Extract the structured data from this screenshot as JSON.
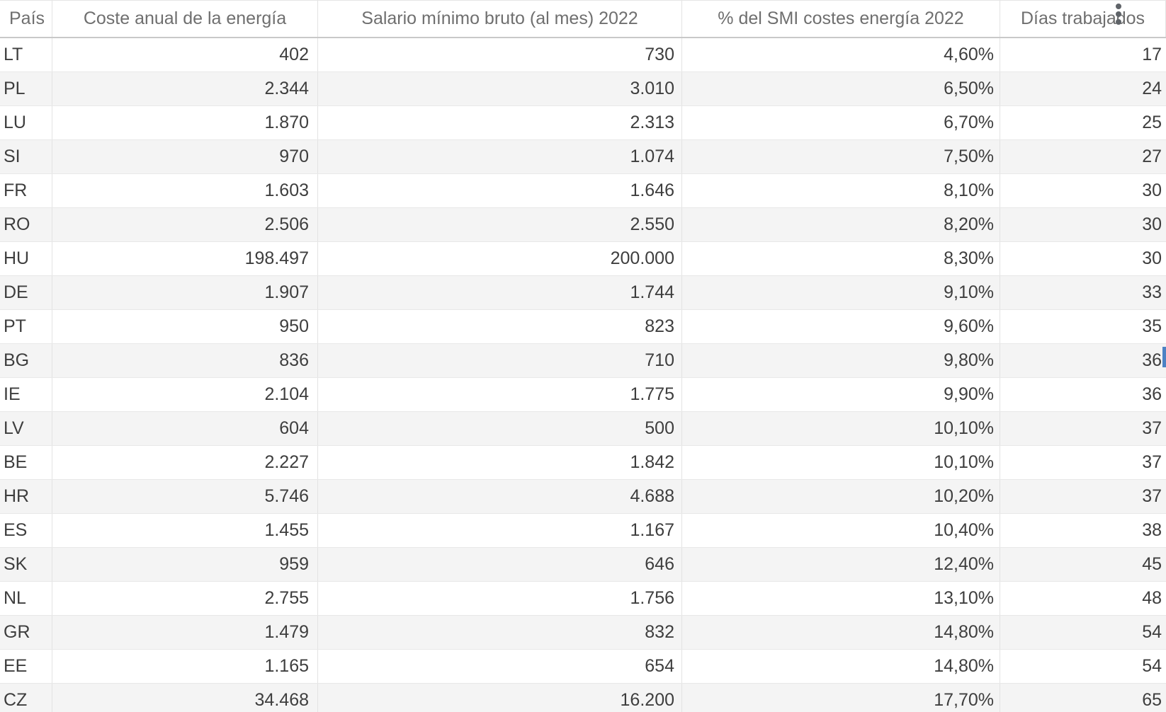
{
  "table": {
    "columns": [
      {
        "id": "pais",
        "label": "País",
        "align": "left"
      },
      {
        "id": "coste",
        "label": "Coste anual de la energía",
        "align": "right"
      },
      {
        "id": "salario",
        "label": "Salario mínimo bruto (al mes) 2022",
        "align": "right"
      },
      {
        "id": "pct",
        "label": "% del SMI costes energía 2022",
        "align": "right"
      },
      {
        "id": "dias",
        "label": "Días trabajados",
        "align": "right"
      }
    ],
    "rows": [
      [
        "LT",
        "402",
        "730",
        "4,60%",
        "17"
      ],
      [
        "PL",
        "2.344",
        "3.010",
        "6,50%",
        "24"
      ],
      [
        "LU",
        "1.870",
        "2.313",
        "6,70%",
        "25"
      ],
      [
        "SI",
        "970",
        "1.074",
        "7,50%",
        "27"
      ],
      [
        "FR",
        "1.603",
        "1.646",
        "8,10%",
        "30"
      ],
      [
        "RO",
        "2.506",
        "2.550",
        "8,20%",
        "30"
      ],
      [
        "HU",
        "198.497",
        "200.000",
        "8,30%",
        "30"
      ],
      [
        "DE",
        "1.907",
        "1.744",
        "9,10%",
        "33"
      ],
      [
        "PT",
        "950",
        "823",
        "9,60%",
        "35"
      ],
      [
        "BG",
        "836",
        "710",
        "9,80%",
        "36"
      ],
      [
        "IE",
        "2.104",
        "1.775",
        "9,90%",
        "36"
      ],
      [
        "LV",
        "604",
        "500",
        "10,10%",
        "37"
      ],
      [
        "BE",
        "2.227",
        "1.842",
        "10,10%",
        "37"
      ],
      [
        "HR",
        "5.746",
        "4.688",
        "10,20%",
        "37"
      ],
      [
        "ES",
        "1.455",
        "1.167",
        "10,40%",
        "38"
      ],
      [
        "SK",
        "959",
        "646",
        "12,40%",
        "45"
      ],
      [
        "NL",
        "2.755",
        "1.756",
        "13,10%",
        "48"
      ],
      [
        "GR",
        "1.479",
        "832",
        "14,80%",
        "54"
      ],
      [
        "EE",
        "1.165",
        "654",
        "14,80%",
        "54"
      ],
      [
        "CZ",
        "34.468",
        "16.200",
        "17,70%",
        "65"
      ]
    ]
  },
  "icons": {
    "column_menu": "kebab-vertical-dots"
  },
  "cursor": {
    "caret_row": "BG"
  },
  "colors": {
    "header_text": "#6f6f6f",
    "body_text": "#3e3e3e",
    "alt_row_bg": "#f4f4f4",
    "grid_line": "#e3e3e3",
    "header_rule": "#c9c9c9",
    "caret": "#4d82c4",
    "icon": "#5f6368"
  }
}
